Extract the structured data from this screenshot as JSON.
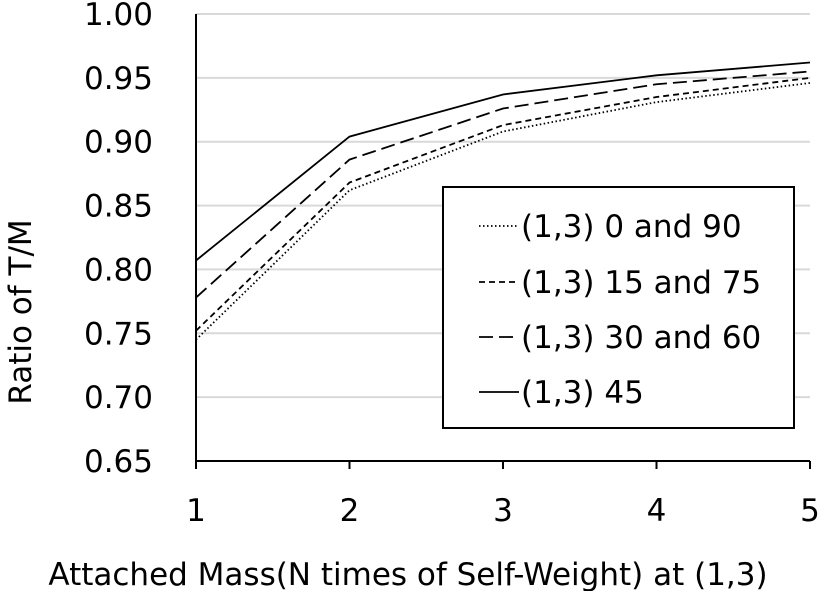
{
  "chart_data": {
    "type": "line",
    "x": [
      1,
      2,
      3,
      4,
      5
    ],
    "xlabel": "Attached Mass(N times of Self-Weight) at (1,3)",
    "ylabel": "Ratio of  T/M",
    "xlim": [
      1,
      5
    ],
    "ylim": [
      0.65,
      1.0
    ],
    "x_ticks": [
      "1",
      "2",
      "3",
      "4",
      "5"
    ],
    "y_ticks": [
      "0.65",
      "0.70",
      "0.75",
      "0.80",
      "0.85",
      "0.90",
      "0.95",
      "1.00"
    ],
    "grid": "horizontal",
    "legend_position": "right",
    "series": [
      {
        "name": "(1,3) 0 and 90",
        "values": [
          0.745,
          0.862,
          0.908,
          0.931,
          0.946
        ],
        "dash": "dotted",
        "color": "#000000"
      },
      {
        "name": "(1,3) 15 and 75",
        "values": [
          0.752,
          0.868,
          0.913,
          0.935,
          0.95
        ],
        "dash": "short-dash",
        "color": "#000000"
      },
      {
        "name": "(1,3) 30 and 60",
        "values": [
          0.778,
          0.886,
          0.926,
          0.945,
          0.955
        ],
        "dash": "long-dash",
        "color": "#000000"
      },
      {
        "name": "(1,3) 45",
        "values": [
          0.807,
          0.904,
          0.937,
          0.952,
          0.962
        ],
        "dash": "solid",
        "color": "#000000"
      }
    ]
  }
}
